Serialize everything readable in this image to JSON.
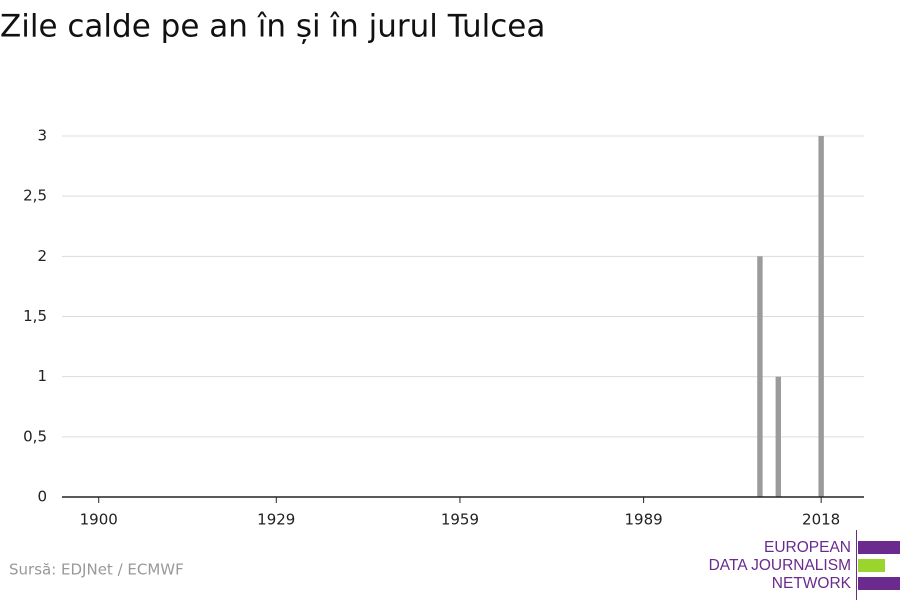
{
  "chart_data": {
    "type": "bar",
    "title": "Zile calde pe an în și în jurul Tulcea",
    "x": [
      2008,
      2011,
      2018
    ],
    "values": [
      2,
      1,
      3
    ],
    "color": "#9b9b9b",
    "xlim": [
      1894,
      2025
    ],
    "xticks": [
      1900,
      1929,
      1959,
      1989,
      2018
    ],
    "ylim": [
      0,
      3
    ],
    "yticks": [
      0,
      {
        "value": 0.5,
        "label": "0,5"
      },
      1,
      {
        "value": 1.5,
        "label": "1,5"
      },
      2,
      {
        "value": 2.5,
        "label": "2,5"
      },
      3
    ],
    "grid": true,
    "source": "Sursă: EDJNet / ECMWF"
  },
  "logo": {
    "lines": [
      "EUROPEAN",
      "DATA JOURNALISM",
      "NETWORK"
    ]
  }
}
